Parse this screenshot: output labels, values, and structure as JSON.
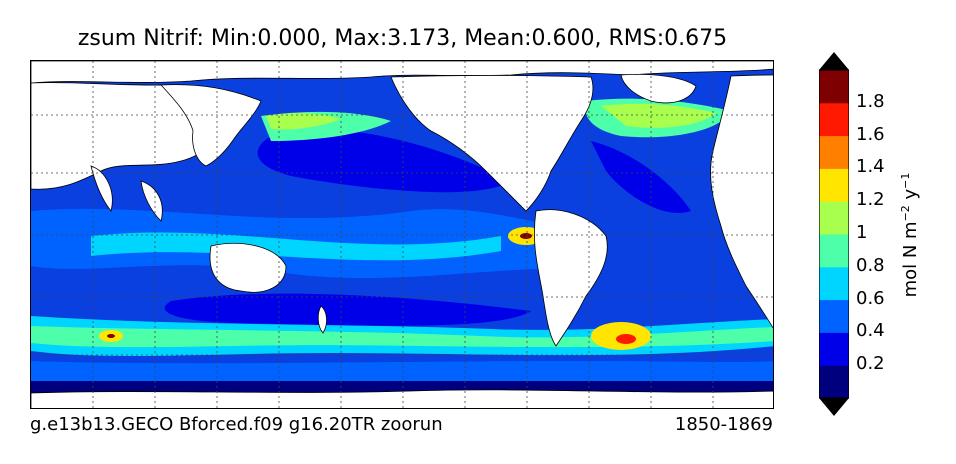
{
  "title": "zsum Nitrif: Min:0.000, Max:3.173, Mean:0.600, RMS:0.675",
  "footer": {
    "case_name": "g.e13b13.GECO Bforced.f09 g16.20TR zoorun",
    "years": "1850-1869"
  },
  "colorbar": {
    "units_main": "mol N m",
    "units_exp1": "−2",
    "units_mid": " y",
    "units_exp2": "−1",
    "ticks": [
      "0.2",
      "0.4",
      "0.6",
      "0.8",
      "1",
      "1.2",
      "1.4",
      "1.6",
      "1.8"
    ],
    "colors": [
      "#00007f",
      "#0000e8",
      "#0063ff",
      "#00d5ff",
      "#4dffa9",
      "#a9ff4d",
      "#ffe500",
      "#ff7f00",
      "#ff1900",
      "#7f0000"
    ],
    "extend": "both"
  },
  "colors": {
    "land": "#ffffff",
    "ocean_low": "#00007f",
    "ocean_mid": "#0063ff",
    "ocean_high": "#a9ff4d"
  }
}
